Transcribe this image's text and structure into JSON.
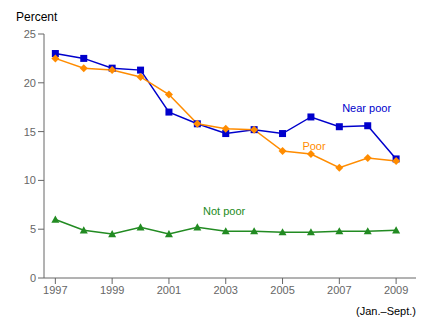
{
  "chart_data": {
    "type": "line",
    "ylabel": "Percent",
    "xlabel": "(Jan.–Sept.)",
    "x": [
      1997,
      1998,
      1999,
      2000,
      2001,
      2002,
      2003,
      2004,
      2005,
      2006,
      2007,
      2008,
      2009
    ],
    "series": [
      {
        "color": "#0000cc",
        "marker": "square",
        "values": [
          23.0,
          22.5,
          21.5,
          21.3,
          17.0,
          15.8,
          14.8,
          15.2,
          14.8,
          16.5,
          15.5,
          15.6,
          12.2
        ]
      },
      {
        "color": "#ff8c00",
        "marker": "diamond",
        "values": [
          22.5,
          21.5,
          21.3,
          20.6,
          18.8,
          15.8,
          15.3,
          15.2,
          13.0,
          12.7,
          11.3,
          12.3,
          12.0
        ]
      },
      {
        "color": "#228B22",
        "marker": "triangle",
        "values": [
          6.0,
          4.9,
          4.5,
          5.2,
          4.5,
          5.2,
          4.8,
          4.8,
          4.7,
          4.7,
          4.8,
          4.8,
          4.9
        ]
      }
    ],
    "annotations": [
      {
        "text": "Near poor",
        "x": 2007.1,
        "y": 17.4,
        "color": "#0000cc"
      },
      {
        "text": "Poor",
        "x": 2005.7,
        "y": 13.5,
        "color": "#ff8c00"
      },
      {
        "text": "Not poor",
        "x": 2002.2,
        "y": 6.9,
        "color": "#228B22"
      }
    ],
    "xlim": [
      1996.6,
      2009.7
    ],
    "xticks": [
      1997,
      1999,
      2001,
      2003,
      2005,
      2007,
      2009
    ],
    "ylim": [
      0,
      25
    ],
    "yticks": [
      0,
      5,
      10,
      15,
      20,
      25
    ],
    "grid": false
  }
}
